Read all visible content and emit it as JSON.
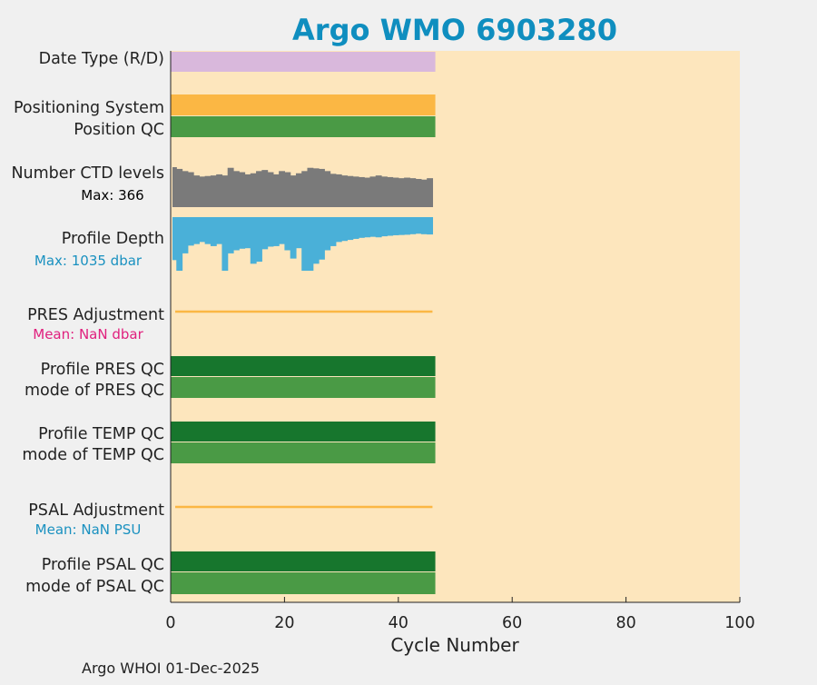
{
  "chart_data": {
    "type": "bar",
    "title": "Argo WMO 6903280",
    "xlabel": "Cycle Number",
    "xlim": [
      0,
      100
    ],
    "xticks": [
      0,
      20,
      40,
      60,
      80,
      100
    ],
    "n_cycles": 46,
    "rows": [
      {
        "label": "Date Type (R/D)",
        "kind": "band",
        "color": "#d9b8dc",
        "cycles": [
          0,
          46.5
        ]
      },
      {
        "label": "Positioning System",
        "kind": "band",
        "color": "#fbb744",
        "cycles": [
          0,
          46.5
        ]
      },
      {
        "label": "Position QC",
        "kind": "band",
        "color": "#4a9a45",
        "cycles": [
          0,
          46.5
        ]
      },
      {
        "label": "Number CTD levels",
        "sublabel": "Max: 366",
        "sublabel_color": "#000000",
        "kind": "bars_up",
        "color": "#7a7a7a",
        "max": 366,
        "values": [
          366,
          350,
          330,
          320,
          290,
          280,
          285,
          290,
          300,
          290,
          360,
          330,
          320,
          300,
          310,
          330,
          340,
          320,
          300,
          330,
          320,
          290,
          310,
          330,
          360,
          355,
          350,
          330,
          305,
          300,
          290,
          285,
          280,
          275,
          270,
          280,
          290,
          280,
          275,
          270,
          265,
          270,
          265,
          258,
          252,
          265
        ]
      },
      {
        "label": "Profile Depth",
        "sublabel": "Max: 1035 dbar",
        "sublabel_color": "#1a91c0",
        "kind": "bars_down",
        "color": "#4ab0d8",
        "max": 1035,
        "values": [
          830,
          1035,
          700,
          550,
          520,
          480,
          520,
          560,
          520,
          1035,
          700,
          640,
          610,
          600,
          900,
          860,
          620,
          570,
          560,
          520,
          640,
          800,
          600,
          1035,
          1035,
          900,
          820,
          640,
          560,
          480,
          460,
          440,
          420,
          400,
          390,
          380,
          390,
          370,
          360,
          350,
          345,
          340,
          330,
          320,
          330,
          335
        ]
      },
      {
        "label": "PRES Adjustment",
        "sublabel": "Mean:  NaN dbar",
        "sublabel_color": "#e0207e",
        "kind": "line",
        "color": "#fbb744",
        "cycles": [
          0,
          46
        ]
      },
      {
        "label": "Profile PRES QC",
        "kind": "band",
        "color": "#17762d",
        "cycles": [
          0,
          46.5
        ]
      },
      {
        "label": "mode of PRES QC",
        "kind": "band",
        "color": "#4a9a45",
        "cycles": [
          0,
          46.5
        ]
      },
      {
        "label": "Profile TEMP QC",
        "kind": "band",
        "color": "#17762d",
        "cycles": [
          0,
          46.5
        ]
      },
      {
        "label": "mode of TEMP QC",
        "kind": "band",
        "color": "#4a9a45",
        "cycles": [
          0,
          46.5
        ]
      },
      {
        "label": "PSAL Adjustment",
        "sublabel": "Mean:  NaN PSU",
        "sublabel_color": "#1a91c0",
        "kind": "line",
        "color": "#fbb744",
        "cycles": [
          0,
          46
        ]
      },
      {
        "label": "Profile PSAL QC",
        "kind": "band",
        "color": "#17762d",
        "cycles": [
          0,
          46.5
        ]
      },
      {
        "label": "mode of PSAL QC",
        "kind": "band",
        "color": "#4a9a45",
        "cycles": [
          0,
          46.5
        ]
      }
    ],
    "colors": {
      "title": "#0f8ebf",
      "plot_background": "#fde6bd",
      "figure_background": "#f0f0f0"
    }
  },
  "footer": "Argo WHOI 01-Dec-2025"
}
